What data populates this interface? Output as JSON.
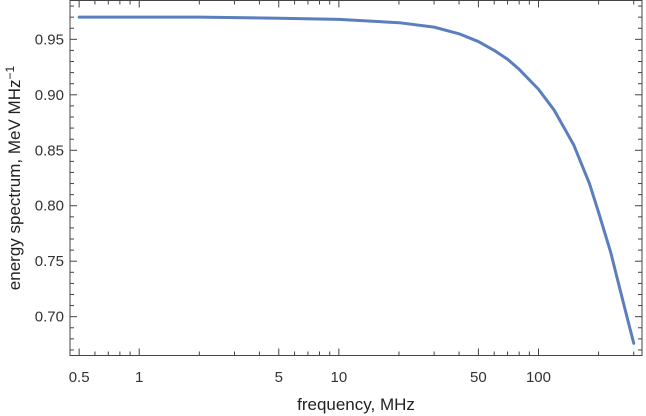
{
  "chart_data": {
    "type": "line",
    "title": "",
    "xlabel": "frequency, MHz",
    "ylabel": "energy spectrum, MeV MHz",
    "ylabel_sup": "−1",
    "x_scale": "log",
    "xlim": [
      0.45,
      330
    ],
    "ylim": [
      0.665,
      0.985
    ],
    "x_ticks_major": [
      0.5,
      1,
      5,
      10,
      50,
      100
    ],
    "x_tick_labels": [
      "0.5",
      "1",
      "5",
      "10",
      "50",
      "100"
    ],
    "y_ticks": [
      0.7,
      0.75,
      0.8,
      0.85,
      0.9,
      0.95
    ],
    "y_tick_labels": [
      "0.70",
      "0.75",
      "0.80",
      "0.85",
      "0.90",
      "0.95"
    ],
    "grid": false,
    "series": [
      {
        "color": "#5b7fbc",
        "x": [
          0.5,
          1,
          2,
          5,
          10,
          20,
          30,
          40,
          50,
          60,
          70,
          80,
          100,
          120,
          150,
          180,
          200,
          230,
          250,
          280,
          300
        ],
        "y": [
          0.97,
          0.97,
          0.97,
          0.969,
          0.968,
          0.965,
          0.961,
          0.955,
          0.948,
          0.94,
          0.932,
          0.923,
          0.905,
          0.886,
          0.855,
          0.82,
          0.794,
          0.758,
          0.732,
          0.697,
          0.676
        ]
      }
    ]
  }
}
